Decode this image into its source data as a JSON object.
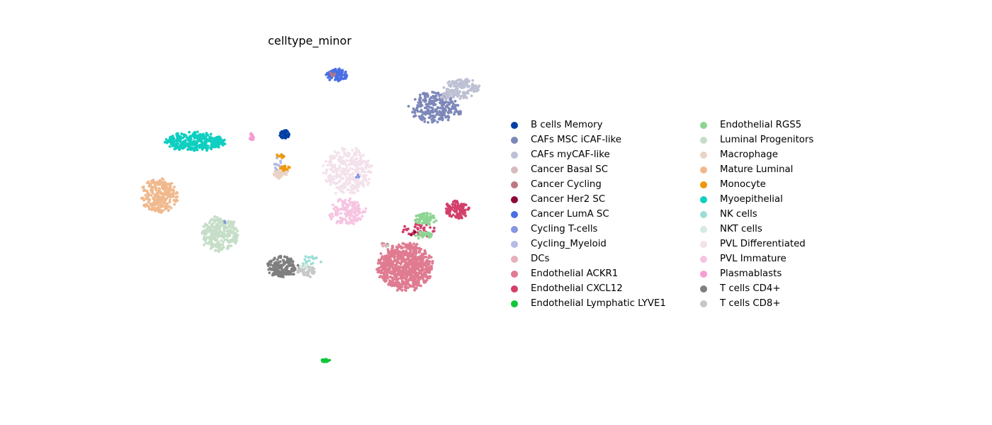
{
  "chart_data": {
    "type": "scatter",
    "title": "celltype_minor",
    "xlabel": "",
    "ylabel": "",
    "grid": false,
    "axes_visible": false,
    "legend_placement": "right",
    "legend_columns": 2,
    "series": [
      {
        "name": "B cells Memory",
        "color": "#023fa5",
        "clusters": [
          {
            "cx": 401,
            "cy": 190,
            "rx": 8,
            "ry": 6,
            "n": 40
          }
        ]
      },
      {
        "name": "CAFs MSC iCAF-like",
        "color": "#7d87b9",
        "clusters": [
          {
            "cx": 612,
            "cy": 152,
            "rx": 34,
            "ry": 22,
            "n": 240
          },
          {
            "cx": 648,
            "cy": 158,
            "rx": 4,
            "ry": 4,
            "n": 8
          }
        ]
      },
      {
        "name": "CAFs myCAF-like",
        "color": "#bec1d4",
        "clusters": [
          {
            "cx": 652,
            "cy": 125,
            "rx": 24,
            "ry": 14,
            "n": 150
          },
          {
            "cx": 628,
            "cy": 136,
            "rx": 8,
            "ry": 5,
            "n": 15
          }
        ]
      },
      {
        "name": "Cancer Basal SC",
        "color": "#d6bcc0",
        "clusters": [
          {
            "cx": 545,
            "cy": 345,
            "rx": 4,
            "ry": 4,
            "n": 4
          }
        ]
      },
      {
        "name": "Cancer Cycling",
        "color": "#bb7784",
        "clusters": [
          {
            "cx": 470,
            "cy": 104,
            "rx": 6,
            "ry": 4,
            "n": 5
          },
          {
            "cx": 543,
            "cy": 343,
            "rx": 4,
            "ry": 4,
            "n": 4
          }
        ]
      },
      {
        "name": "Cancer Her2 SC",
        "color": "#8e063b",
        "clusters": [
          {
            "cx": 583,
            "cy": 330,
            "rx": 4,
            "ry": 4,
            "n": 3
          }
        ]
      },
      {
        "name": "Cancer LumA SC",
        "color": "#4a6fe3",
        "clusters": [
          {
            "cx": 475,
            "cy": 106,
            "rx": 15,
            "ry": 9,
            "n": 90
          },
          {
            "cx": 398,
            "cy": 222,
            "rx": 3,
            "ry": 3,
            "n": 3
          }
        ]
      },
      {
        "name": "Cycling T-cells",
        "color": "#8595e1",
        "clusters": [
          {
            "cx": 505,
            "cy": 249,
            "rx": 3,
            "ry": 3,
            "n": 3
          },
          {
            "cx": 316,
            "cy": 313,
            "rx": 2,
            "ry": 2,
            "n": 2
          }
        ]
      },
      {
        "name": "Cycling_Myeloid",
        "color": "#b5bbe3",
        "clusters": [
          {
            "cx": 392,
            "cy": 231,
            "rx": 6,
            "ry": 10,
            "n": 12
          }
        ]
      },
      {
        "name": "DCs",
        "color": "#e6afb9",
        "clusters": [
          {
            "cx": 540,
            "cy": 344,
            "rx": 4,
            "ry": 4,
            "n": 3
          }
        ]
      },
      {
        "name": "Endothelial ACKR1",
        "color": "#e07b91",
        "clusters": [
          {
            "cx": 572,
            "cy": 377,
            "rx": 38,
            "ry": 33,
            "n": 800
          }
        ]
      },
      {
        "name": "Endothelial CXCL12",
        "color": "#d33f6a",
        "clusters": [
          {
            "cx": 645,
            "cy": 296,
            "rx": 17,
            "ry": 13,
            "n": 110
          },
          {
            "cx": 593,
            "cy": 325,
            "rx": 24,
            "ry": 9,
            "n": 45
          }
        ]
      },
      {
        "name": "Endothelial Lymphatic LYVE1",
        "color": "#11c638",
        "clusters": [
          {
            "cx": 460,
            "cy": 509,
            "rx": 7,
            "ry": 2,
            "n": 25
          }
        ]
      },
      {
        "name": "Endothelial RGS5",
        "color": "#8dd593",
        "clusters": [
          {
            "cx": 600,
            "cy": 309,
            "rx": 15,
            "ry": 9,
            "n": 70
          },
          {
            "cx": 598,
            "cy": 332,
            "rx": 12,
            "ry": 6,
            "n": 25
          }
        ]
      },
      {
        "name": "Luminal Progenitors",
        "color": "#c6dec7",
        "clusters": [
          {
            "cx": 310,
            "cy": 331,
            "rx": 27,
            "ry": 24,
            "n": 280
          }
        ]
      },
      {
        "name": "Macrophage",
        "color": "#ead3c6",
        "clusters": [
          {
            "cx": 397,
            "cy": 245,
            "rx": 11,
            "ry": 7,
            "n": 45
          }
        ]
      },
      {
        "name": "Mature Luminal",
        "color": "#f0b98d",
        "clusters": [
          {
            "cx": 224,
            "cy": 277,
            "rx": 26,
            "ry": 24,
            "n": 280
          }
        ]
      },
      {
        "name": "Monocyte",
        "color": "#ef9708",
        "clusters": [
          {
            "cx": 396,
            "cy": 221,
            "rx": 6,
            "ry": 4,
            "n": 10
          },
          {
            "cx": 402,
            "cy": 237,
            "rx": 9,
            "ry": 4,
            "n": 14
          }
        ]
      },
      {
        "name": "Myoepithelial",
        "color": "#0fcfc0",
        "clusters": [
          {
            "cx": 275,
            "cy": 200,
            "rx": 42,
            "ry": 13,
            "n": 330
          }
        ]
      },
      {
        "name": "NK cells",
        "color": "#9cded6",
        "clusters": [
          {
            "cx": 438,
            "cy": 368,
            "rx": 16,
            "ry": 7,
            "n": 18
          }
        ]
      },
      {
        "name": "NKT cells",
        "color": "#d5eae7",
        "clusters": [
          {
            "cx": 432,
            "cy": 376,
            "rx": 10,
            "ry": 5,
            "n": 8
          }
        ]
      },
      {
        "name": "PVL Differentiated",
        "color": "#f3e1eb",
        "clusters": [
          {
            "cx": 490,
            "cy": 242,
            "rx": 34,
            "ry": 32,
            "n": 320
          }
        ]
      },
      {
        "name": "PVL Immature",
        "color": "#f6c4e1",
        "clusters": [
          {
            "cx": 490,
            "cy": 299,
            "rx": 26,
            "ry": 18,
            "n": 150
          }
        ]
      },
      {
        "name": "Plasmablasts",
        "color": "#f79cd4",
        "clusters": [
          {
            "cx": 355,
            "cy": 193,
            "rx": 4,
            "ry": 5,
            "n": 18
          }
        ]
      },
      {
        "name": "T cells CD4+",
        "color": "#7f7f7f",
        "clusters": [
          {
            "cx": 399,
            "cy": 376,
            "rx": 22,
            "ry": 15,
            "n": 170
          }
        ]
      },
      {
        "name": "T cells CD8+",
        "color": "#c7c7c7",
        "clusters": [
          {
            "cx": 433,
            "cy": 383,
            "rx": 13,
            "ry": 8,
            "n": 50
          }
        ]
      }
    ]
  }
}
